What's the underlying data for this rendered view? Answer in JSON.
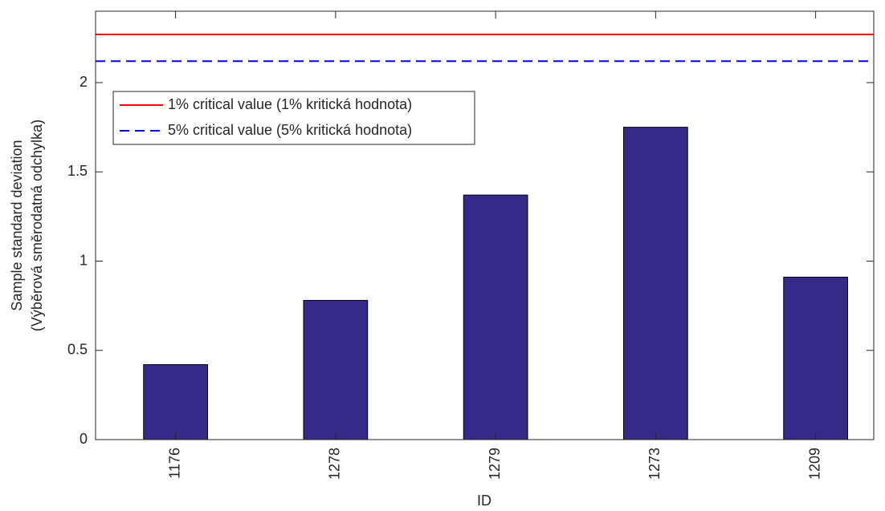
{
  "chart_data": {
    "type": "bar",
    "xlabel": "ID",
    "ylabel": [
      "Sample standard deviation",
      "(Výběrová směrodatná odchylka)"
    ],
    "categories": [
      "1176",
      "1278",
      "1279",
      "1273",
      "1209"
    ],
    "values": [
      0.42,
      0.78,
      1.37,
      1.75,
      0.91
    ],
    "color": "#352a87",
    "ylim": [
      0,
      2.4
    ],
    "yticks": [
      0,
      0.5,
      1,
      1.5,
      2
    ],
    "grid": false,
    "legend": "upper left",
    "reference_lines": [
      {
        "name": "1% critical value (1% kritická hodnota)",
        "value": 2.27,
        "color": "#ff0000",
        "style": "solid"
      },
      {
        "name": "5% critical value (5% kritická hodnota)",
        "value": 2.12,
        "color": "#0000ff",
        "style": "dashed"
      }
    ]
  }
}
